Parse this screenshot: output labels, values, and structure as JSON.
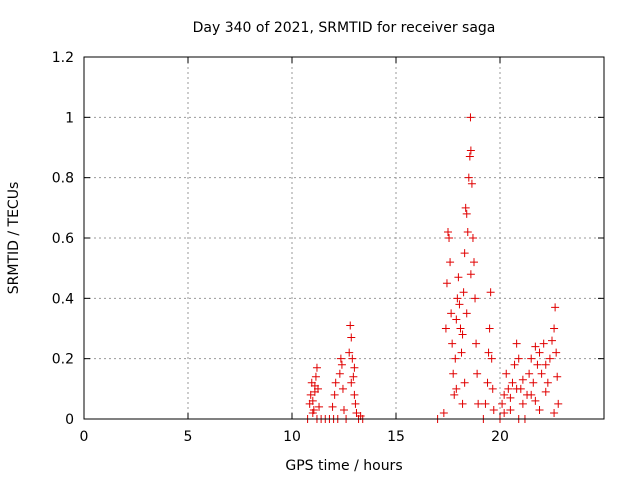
{
  "chart_data": {
    "type": "scatter",
    "title": "Day 340 of 2021, SRMTID for receiver saga",
    "xlabel": "GPS time / hours",
    "ylabel": "SRMTID / TECUs",
    "xlim": [
      0,
      25
    ],
    "ylim": [
      0,
      1.2
    ],
    "xticks": [
      0,
      5,
      10,
      15,
      20
    ],
    "xtick_labels": [
      "0",
      "5",
      "10",
      "15",
      "20"
    ],
    "yticks": [
      0,
      0.2,
      0.4,
      0.6,
      0.8,
      1.0,
      1.2
    ],
    "ytick_labels": [
      "0",
      "0.2",
      "0.4",
      "0.6",
      "0.8",
      "1",
      "1.2"
    ],
    "grid": true,
    "marker": "+",
    "color": "#e00000",
    "series": [
      {
        "name": "saga",
        "points": [
          [
            10.75,
            0.0
          ],
          [
            10.85,
            0.05
          ],
          [
            10.9,
            0.08
          ],
          [
            10.95,
            0.12
          ],
          [
            11.0,
            0.06
          ],
          [
            11.05,
            0.03
          ],
          [
            11.1,
            0.09
          ],
          [
            11.15,
            0.14
          ],
          [
            11.2,
            0.17
          ],
          [
            11.25,
            0.1
          ],
          [
            11.3,
            0.04
          ],
          [
            11.0,
            0.02
          ],
          [
            11.1,
            0.11
          ],
          [
            11.2,
            0.0
          ],
          [
            11.4,
            0.0
          ],
          [
            11.6,
            0.0
          ],
          [
            11.8,
            0.0
          ],
          [
            11.95,
            0.04
          ],
          [
            12.0,
            0.0
          ],
          [
            12.05,
            0.08
          ],
          [
            12.1,
            0.12
          ],
          [
            12.2,
            0.0
          ],
          [
            12.3,
            0.15
          ],
          [
            12.35,
            0.2
          ],
          [
            12.4,
            0.18
          ],
          [
            12.45,
            0.1
          ],
          [
            12.5,
            0.03
          ],
          [
            12.6,
            0.0
          ],
          [
            12.75,
            0.22
          ],
          [
            12.8,
            0.31
          ],
          [
            12.85,
            0.27
          ],
          [
            12.9,
            0.2
          ],
          [
            12.95,
            0.14
          ],
          [
            13.0,
            0.08
          ],
          [
            13.05,
            0.05
          ],
          [
            13.1,
            0.02
          ],
          [
            13.2,
            0.0
          ],
          [
            13.3,
            0.01
          ],
          [
            13.4,
            0.0
          ],
          [
            12.85,
            0.12
          ],
          [
            13.0,
            0.17
          ],
          [
            17.0,
            0.0
          ],
          [
            17.3,
            0.02
          ],
          [
            17.4,
            0.3
          ],
          [
            17.45,
            0.45
          ],
          [
            17.5,
            0.62
          ],
          [
            17.55,
            0.6
          ],
          [
            17.6,
            0.52
          ],
          [
            17.65,
            0.35
          ],
          [
            17.7,
            0.25
          ],
          [
            17.75,
            0.15
          ],
          [
            17.8,
            0.08
          ],
          [
            17.85,
            0.2
          ],
          [
            17.9,
            0.33
          ],
          [
            17.95,
            0.4
          ],
          [
            18.0,
            0.47
          ],
          [
            18.05,
            0.38
          ],
          [
            18.1,
            0.3
          ],
          [
            18.15,
            0.22
          ],
          [
            18.2,
            0.28
          ],
          [
            18.25,
            0.42
          ],
          [
            18.3,
            0.55
          ],
          [
            18.35,
            0.7
          ],
          [
            18.4,
            0.68
          ],
          [
            18.45,
            0.62
          ],
          [
            18.5,
            0.8
          ],
          [
            18.55,
            0.87
          ],
          [
            18.6,
            0.89
          ],
          [
            18.58,
            1.0
          ],
          [
            18.65,
            0.78
          ],
          [
            18.7,
            0.6
          ],
          [
            18.75,
            0.52
          ],
          [
            18.8,
            0.4
          ],
          [
            18.85,
            0.25
          ],
          [
            18.9,
            0.15
          ],
          [
            18.95,
            0.05
          ],
          [
            18.3,
            0.12
          ],
          [
            18.2,
            0.05
          ],
          [
            17.9,
            0.1
          ],
          [
            18.4,
            0.35
          ],
          [
            18.6,
            0.48
          ],
          [
            19.2,
            0.0
          ],
          [
            19.3,
            0.05
          ],
          [
            19.4,
            0.12
          ],
          [
            19.45,
            0.22
          ],
          [
            19.5,
            0.3
          ],
          [
            19.55,
            0.42
          ],
          [
            19.6,
            0.2
          ],
          [
            19.65,
            0.1
          ],
          [
            19.7,
            0.03
          ],
          [
            20.0,
            0.0
          ],
          [
            20.1,
            0.05
          ],
          [
            20.2,
            0.08
          ],
          [
            20.3,
            0.15
          ],
          [
            20.4,
            0.1
          ],
          [
            20.5,
            0.03
          ],
          [
            20.6,
            0.12
          ],
          [
            20.7,
            0.18
          ],
          [
            20.8,
            0.25
          ],
          [
            20.9,
            0.2
          ],
          [
            21.0,
            0.1
          ],
          [
            21.1,
            0.05
          ],
          [
            21.2,
            0.0
          ],
          [
            21.3,
            0.08
          ],
          [
            21.4,
            0.15
          ],
          [
            21.5,
            0.2
          ],
          [
            21.6,
            0.12
          ],
          [
            21.7,
            0.06
          ],
          [
            21.8,
            0.18
          ],
          [
            21.9,
            0.22
          ],
          [
            22.0,
            0.15
          ],
          [
            22.1,
            0.25
          ],
          [
            22.2,
            0.18
          ],
          [
            22.3,
            0.12
          ],
          [
            22.4,
            0.2
          ],
          [
            22.5,
            0.26
          ],
          [
            22.6,
            0.3
          ],
          [
            22.65,
            0.37
          ],
          [
            22.7,
            0.22
          ],
          [
            22.75,
            0.14
          ],
          [
            22.8,
            0.05
          ],
          [
            20.2,
            0.02
          ],
          [
            20.5,
            0.07
          ],
          [
            20.8,
            0.1
          ],
          [
            21.1,
            0.13
          ],
          [
            21.5,
            0.08
          ],
          [
            21.9,
            0.03
          ],
          [
            22.2,
            0.09
          ],
          [
            22.6,
            0.02
          ],
          [
            21.7,
            0.24
          ],
          [
            20.9,
            0.0
          ]
        ]
      }
    ]
  }
}
